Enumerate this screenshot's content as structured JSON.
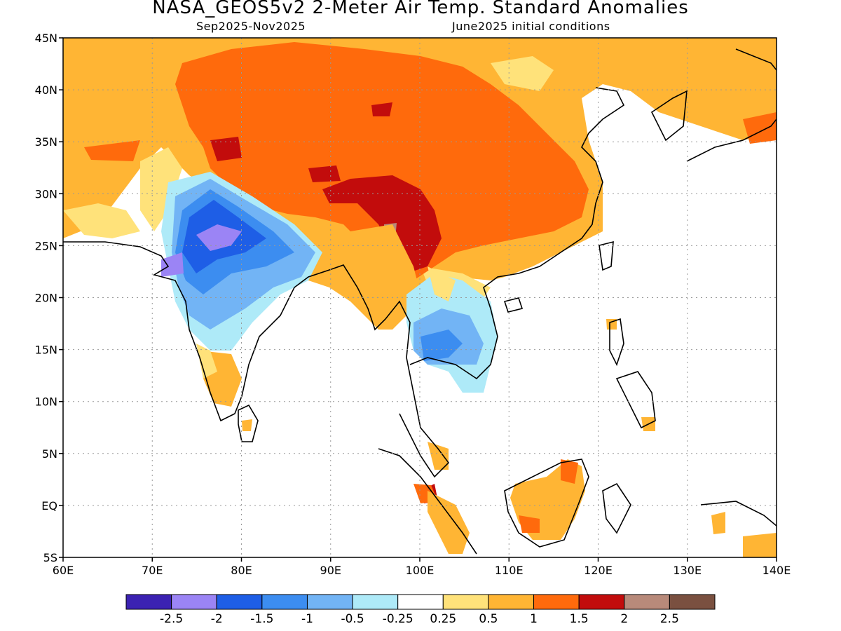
{
  "title": "NASA_GEOS5v2 2-Meter Air Temp. Standard Anomalies",
  "subtitle_left": "Sep2025-Nov2025",
  "subtitle_right": "June2025 initial conditions",
  "map": {
    "lon_range": [
      60,
      140
    ],
    "lat_range": [
      -5,
      45
    ],
    "lon_ticks": [
      "60E",
      "70E",
      "80E",
      "90E",
      "100E",
      "110E",
      "120E",
      "130E",
      "140E"
    ],
    "lat_ticks": [
      "45N",
      "40N",
      "35N",
      "30N",
      "25N",
      "20N",
      "15N",
      "10N",
      "5N",
      "EQ",
      "5S"
    ],
    "grid": "dotted"
  },
  "legend": {
    "labels": [
      "-2.5",
      "-2",
      "-1.5",
      "-1",
      "-0.5",
      "-0.25",
      "0.25",
      "0.5",
      "1",
      "1.5",
      "2",
      "2.5"
    ],
    "colors": [
      "#3b22b2",
      "#9b84f5",
      "#1e5ee6",
      "#3c8df0",
      "#72b4f5",
      "#aeeaf8",
      "#ffffff",
      "#ffe27a",
      "#ffb534",
      "#ff6a0c",
      "#c20c0c",
      "#b88a7a",
      "#7a5040"
    ]
  },
  "palette": {
    "neg025": "#aeeaf8",
    "neg05": "#72b4f5",
    "neg1": "#3c8df0",
    "neg15": "#1e5ee6",
    "neg2": "#9b84f5",
    "pos025": "#ffe27a",
    "pos05": "#ffb534",
    "pos1": "#ff6a0c",
    "pos15": "#c20c0c",
    "pos2": "#b88a7a"
  }
}
